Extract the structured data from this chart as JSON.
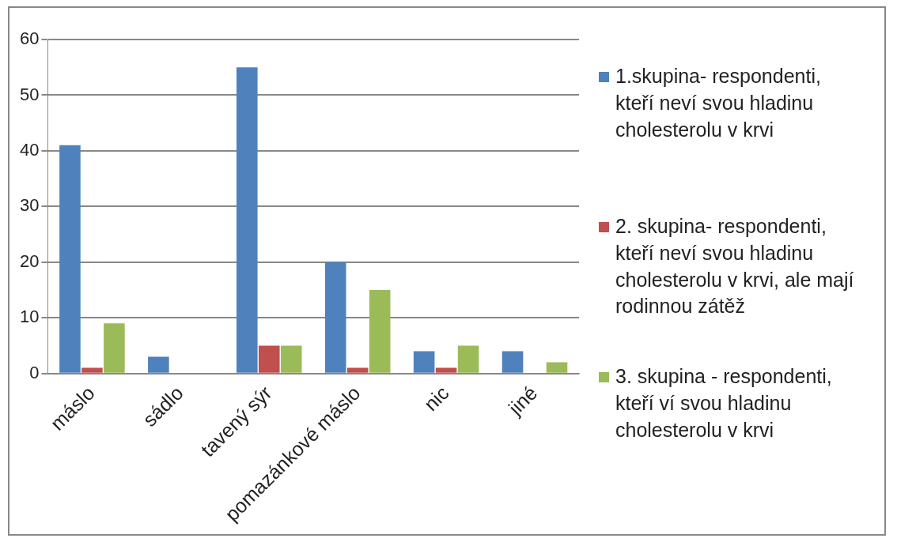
{
  "chart_data": {
    "type": "bar",
    "categories": [
      "máslo",
      "sádlo",
      "tavený sýr",
      "pomazánkové máslo",
      "nic",
      "jiné"
    ],
    "series": [
      {
        "name": "1.skupina- respondenti, kteří neví svou hladinu cholesterolu v krvi",
        "color": "#4f81bd",
        "values": [
          41,
          3,
          55,
          20,
          4,
          4
        ]
      },
      {
        "name": "2. skupina- respondenti, kteří neví svou hladinu cholesterolu v krvi, ale mají rodinnou zátěž",
        "color": "#c0504d",
        "values": [
          1,
          0,
          5,
          1,
          1,
          0
        ]
      },
      {
        "name": "3. skupina - respondenti, kteří ví svou hladinu cholesterolu v krvi",
        "color": "#9bbb59",
        "values": [
          9,
          0,
          5,
          15,
          5,
          2
        ]
      }
    ],
    "ylim": [
      0,
      60
    ],
    "yticks": [
      0,
      10,
      20,
      30,
      40,
      50,
      60
    ],
    "grid": "y",
    "legend": "right"
  }
}
